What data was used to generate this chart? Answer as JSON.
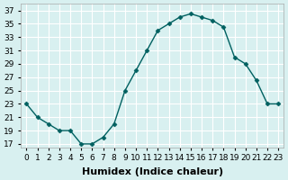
{
  "x": [
    0,
    1,
    2,
    3,
    4,
    5,
    6,
    7,
    8,
    9,
    10,
    11,
    12,
    13,
    14,
    15,
    16,
    17,
    18,
    19,
    20,
    21,
    22,
    23
  ],
  "y": [
    23,
    21,
    20,
    19,
    19,
    17,
    17,
    18,
    20,
    25,
    28,
    31,
    34,
    35,
    36,
    36.5,
    36,
    35.5,
    34.5,
    30,
    29,
    26.5,
    23,
    23
  ],
  "line_color": "#006060",
  "marker": "D",
  "marker_size": 2.5,
  "bg_color": "#d8f0f0",
  "grid_color": "#ffffff",
  "xlabel": "Humidex (Indice chaleur)",
  "xlabel_fontsize": 8,
  "ylabel_ticks": [
    17,
    19,
    21,
    23,
    25,
    27,
    29,
    31,
    33,
    35,
    37
  ],
  "ylim": [
    16.5,
    38
  ],
  "xlim": [
    -0.5,
    23.5
  ],
  "xtick_positions": [
    0,
    1,
    2,
    3,
    4,
    5,
    6,
    7,
    8,
    9,
    10,
    11,
    12,
    13,
    14,
    15,
    16,
    17,
    18,
    19,
    20,
    21,
    22,
    23
  ],
  "xtick_labels": [
    "0",
    "1",
    "2",
    "3",
    "4",
    "5",
    "6",
    "7",
    "8",
    "9",
    "10",
    "11",
    "12",
    "13",
    "14",
    "15",
    "16",
    "17",
    "18",
    "19",
    "20",
    "21",
    "22",
    "23"
  ],
  "tick_fontsize": 6.5
}
